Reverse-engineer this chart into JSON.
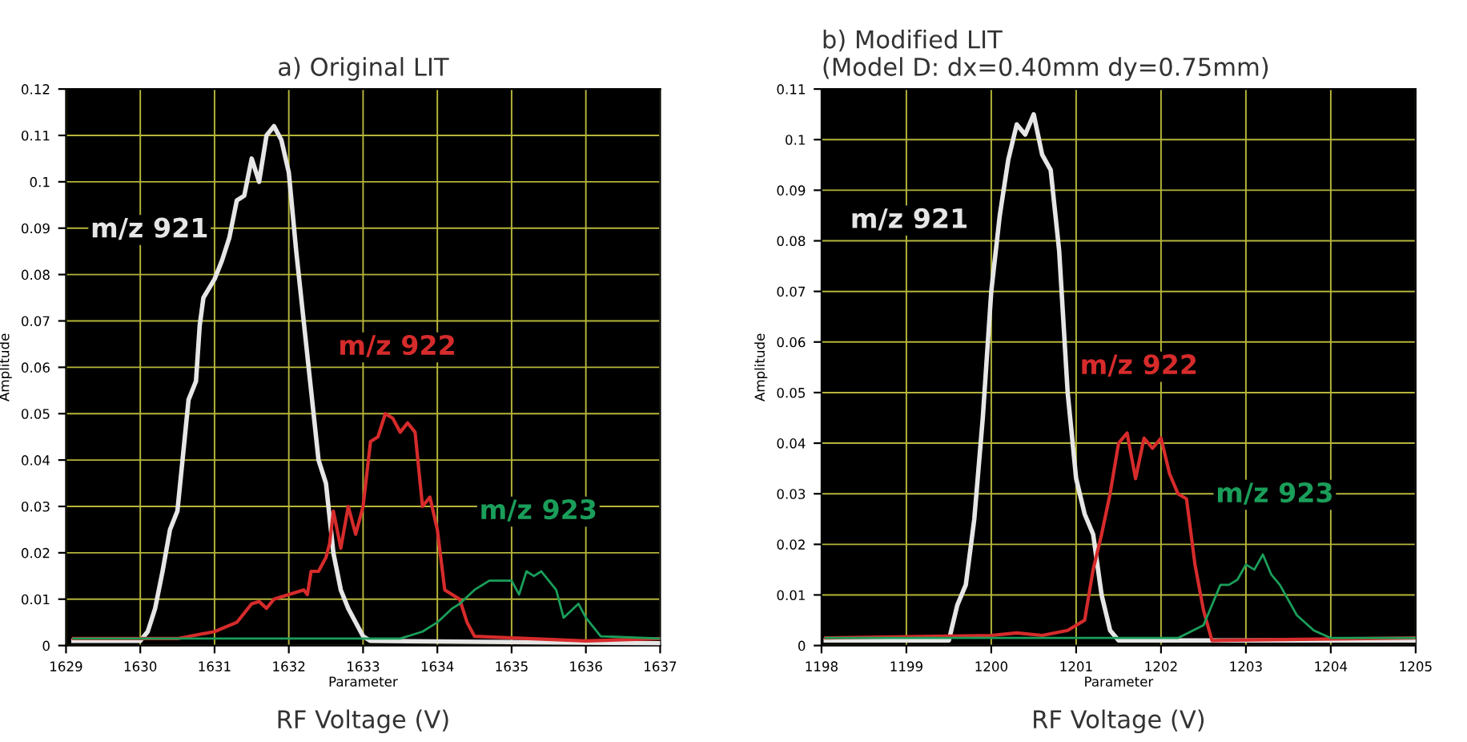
{
  "chart_data": [
    {
      "type": "line",
      "title": "a) Original LIT",
      "xlabel": "Parameter",
      "ylabel": "Amplitude",
      "annotations": [
        "RF Voltage (V)"
      ],
      "xlim": [
        1629,
        1637
      ],
      "xticks": [
        1629,
        1630,
        1631,
        1632,
        1633,
        1634,
        1635,
        1636,
        1637
      ],
      "ylim": [
        0,
        0.12
      ],
      "yticks": [
        0,
        0.01,
        0.02,
        0.03,
        0.04,
        0.05,
        0.06,
        0.07,
        0.08,
        0.09,
        0.1,
        0.11,
        0.12
      ],
      "grid": true,
      "legend": false,
      "series": [
        {
          "name": "m/z 921",
          "color": "#e6e6e6",
          "x": [
            1629.1,
            1630.0,
            1630.1,
            1630.2,
            1630.3,
            1630.4,
            1630.5,
            1630.6,
            1630.65,
            1630.75,
            1630.8,
            1630.85,
            1631.0,
            1631.1,
            1631.2,
            1631.3,
            1631.4,
            1631.5,
            1631.6,
            1631.7,
            1631.8,
            1631.9,
            1632.0,
            1632.1,
            1632.2,
            1632.3,
            1632.4,
            1632.5,
            1632.6,
            1632.7,
            1632.8,
            1633.0,
            1633.1,
            1637
          ],
          "values": [
            0.001,
            0.001,
            0.003,
            0.008,
            0.016,
            0.025,
            0.029,
            0.045,
            0.053,
            0.057,
            0.069,
            0.075,
            0.079,
            0.083,
            0.088,
            0.096,
            0.097,
            0.105,
            0.1,
            0.11,
            0.112,
            0.109,
            0.102,
            0.085,
            0.07,
            0.055,
            0.04,
            0.035,
            0.02,
            0.012,
            0.008,
            0.002,
            0.001,
            0.0005
          ]
        },
        {
          "name": "m/z 922",
          "color": "#d62b2b",
          "x": [
            1629.1,
            1630.5,
            1631.0,
            1631.3,
            1631.5,
            1631.6,
            1631.7,
            1631.8,
            1632.0,
            1632.2,
            1632.25,
            1632.3,
            1632.4,
            1632.5,
            1632.55,
            1632.6,
            1632.7,
            1632.8,
            1632.9,
            1633.0,
            1633.1,
            1633.2,
            1633.3,
            1633.4,
            1633.5,
            1633.6,
            1633.7,
            1633.8,
            1633.9,
            1634.0,
            1634.1,
            1634.3,
            1634.4,
            1634.5,
            1636.0,
            1637
          ],
          "values": [
            0.0015,
            0.0015,
            0.003,
            0.005,
            0.009,
            0.0095,
            0.008,
            0.01,
            0.011,
            0.012,
            0.011,
            0.016,
            0.016,
            0.019,
            0.022,
            0.029,
            0.021,
            0.03,
            0.024,
            0.03,
            0.044,
            0.045,
            0.05,
            0.049,
            0.046,
            0.048,
            0.046,
            0.03,
            0.032,
            0.025,
            0.012,
            0.01,
            0.005,
            0.002,
            0.001,
            0.0015
          ]
        },
        {
          "name": "m/z 923",
          "color": "#1a9e5a",
          "x": [
            1629.1,
            1633.5,
            1633.8,
            1634.0,
            1634.2,
            1634.3,
            1634.5,
            1634.7,
            1634.9,
            1635.0,
            1635.1,
            1635.2,
            1635.3,
            1635.4,
            1635.6,
            1635.7,
            1635.9,
            1636.0,
            1636.2,
            1637
          ],
          "values": [
            0.0015,
            0.0015,
            0.003,
            0.005,
            0.008,
            0.009,
            0.012,
            0.014,
            0.014,
            0.014,
            0.011,
            0.016,
            0.015,
            0.016,
            0.012,
            0.006,
            0.009,
            0.006,
            0.002,
            0.0015
          ]
        }
      ]
    },
    {
      "type": "line",
      "title": "b) Modified LIT\n(Model D: dx=0.40mm dy=0.75mm)",
      "xlabel": "Parameter",
      "ylabel": "Amplitude",
      "annotations": [
        "RF Voltage (V)"
      ],
      "xlim": [
        1198,
        1205
      ],
      "xticks": [
        1198,
        1199,
        1200,
        1201,
        1202,
        1203,
        1204,
        1205
      ],
      "ylim": [
        0,
        0.11
      ],
      "yticks": [
        0,
        0.01,
        0.02,
        0.03,
        0.04,
        0.05,
        0.06,
        0.07,
        0.08,
        0.09,
        0.1,
        0.11
      ],
      "grid": true,
      "legend": false,
      "series": [
        {
          "name": "m/z 921",
          "color": "#e6e6e6",
          "x": [
            1198.05,
            1199.5,
            1199.6,
            1199.7,
            1199.8,
            1199.9,
            1200.0,
            1200.1,
            1200.2,
            1200.3,
            1200.4,
            1200.5,
            1200.6,
            1200.7,
            1200.8,
            1200.9,
            1201.0,
            1201.1,
            1201.2,
            1201.3,
            1201.4,
            1201.5,
            1205
          ],
          "values": [
            0.001,
            0.001,
            0.008,
            0.012,
            0.025,
            0.045,
            0.07,
            0.085,
            0.096,
            0.103,
            0.101,
            0.105,
            0.097,
            0.094,
            0.078,
            0.05,
            0.033,
            0.026,
            0.022,
            0.01,
            0.003,
            0.001,
            0.001
          ]
        },
        {
          "name": "m/z 922",
          "color": "#d62b2b",
          "x": [
            1198.05,
            1200.0,
            1200.3,
            1200.6,
            1200.9,
            1201.1,
            1201.2,
            1201.3,
            1201.4,
            1201.5,
            1201.6,
            1201.7,
            1201.8,
            1201.9,
            1202.0,
            1202.1,
            1202.2,
            1202.3,
            1202.4,
            1202.5,
            1202.6,
            1205
          ],
          "values": [
            0.0015,
            0.002,
            0.0025,
            0.002,
            0.003,
            0.005,
            0.015,
            0.022,
            0.03,
            0.04,
            0.042,
            0.033,
            0.041,
            0.039,
            0.041,
            0.034,
            0.03,
            0.029,
            0.016,
            0.007,
            0.001,
            0.0015
          ]
        },
        {
          "name": "m/z 923",
          "color": "#1a9e5a",
          "x": [
            1198.05,
            1202.2,
            1202.5,
            1202.7,
            1202.8,
            1202.9,
            1203.0,
            1203.1,
            1203.2,
            1203.3,
            1203.4,
            1203.6,
            1203.8,
            1204.0,
            1205
          ],
          "values": [
            0.0015,
            0.0015,
            0.004,
            0.012,
            0.012,
            0.013,
            0.016,
            0.015,
            0.018,
            0.014,
            0.012,
            0.006,
            0.003,
            0.0015,
            0.0015
          ]
        }
      ]
    }
  ]
}
